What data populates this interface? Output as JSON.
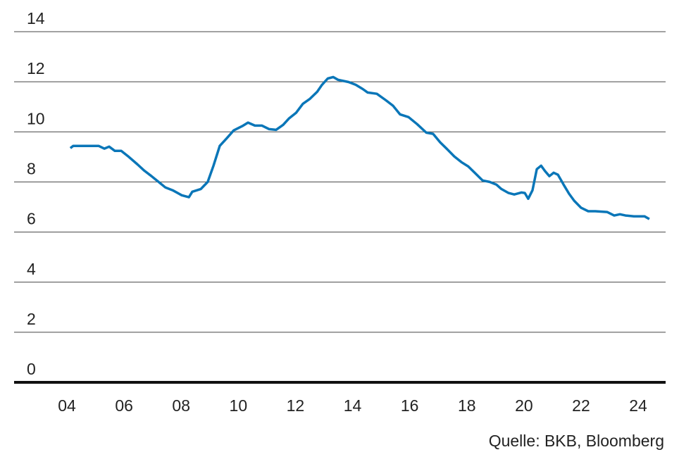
{
  "chart_data": {
    "type": "line",
    "source": "Quelle: BKB, Bloomberg",
    "series": [
      {
        "name": null,
        "color": "#0a76b8",
        "x": [
          2004.12,
          2004.22,
          2005.11,
          2005.31,
          2005.48,
          2005.68,
          2005.9,
          2006.17,
          2006.47,
          2006.71,
          2006.96,
          2007.21,
          2007.45,
          2007.7,
          2008.02,
          2008.27,
          2008.39,
          2008.69,
          2008.93,
          2009.13,
          2009.35,
          2009.6,
          2009.84,
          2010.17,
          2010.34,
          2010.58,
          2010.83,
          2011.08,
          2011.32,
          2011.57,
          2011.77,
          2012.02,
          2012.26,
          2012.51,
          2012.76,
          2012.93,
          2013.13,
          2013.32,
          2013.49,
          2013.86,
          2014.11,
          2014.36,
          2014.53,
          2014.85,
          2015.17,
          2015.42,
          2015.66,
          2015.96,
          2016.26,
          2016.58,
          2016.82,
          2017.07,
          2017.32,
          2017.56,
          2017.81,
          2018.05,
          2018.3,
          2018.55,
          2018.8,
          2019.04,
          2019.21,
          2019.46,
          2019.66,
          2019.91,
          2020.03,
          2020.15,
          2020.3,
          2020.45,
          2020.6,
          2020.74,
          2020.89,
          2021.04,
          2021.19,
          2021.39,
          2021.58,
          2021.76,
          2022.0,
          2022.25,
          2022.5,
          2022.91,
          2023.16,
          2023.36,
          2023.56,
          2023.85,
          2024.22,
          2024.39
        ],
        "values": [
          9.35,
          9.44,
          9.44,
          9.33,
          9.41,
          9.24,
          9.24,
          9.0,
          8.7,
          8.45,
          8.23,
          8.0,
          7.78,
          7.67,
          7.47,
          7.39,
          7.61,
          7.72,
          8.0,
          8.65,
          9.44,
          9.75,
          10.06,
          10.25,
          10.37,
          10.25,
          10.25,
          10.11,
          10.08,
          10.28,
          10.53,
          10.76,
          11.12,
          11.32,
          11.6,
          11.88,
          12.13,
          12.19,
          12.08,
          11.99,
          11.88,
          11.71,
          11.57,
          11.52,
          11.26,
          11.04,
          10.7,
          10.59,
          10.31,
          9.97,
          9.92,
          9.58,
          9.3,
          9.02,
          8.79,
          8.62,
          8.34,
          8.06,
          8.0,
          7.89,
          7.72,
          7.56,
          7.5,
          7.58,
          7.56,
          7.33,
          7.67,
          8.51,
          8.65,
          8.43,
          8.23,
          8.37,
          8.29,
          7.89,
          7.53,
          7.25,
          6.97,
          6.83,
          6.83,
          6.8,
          6.66,
          6.71,
          6.66,
          6.63,
          6.63,
          6.52
        ]
      }
    ],
    "xlim": [
      2002.15,
      2024.96
    ],
    "xticks": [
      {
        "value": 2004,
        "label": "04"
      },
      {
        "value": 2006,
        "label": "06"
      },
      {
        "value": 2008,
        "label": "08"
      },
      {
        "value": 2010,
        "label": "10"
      },
      {
        "value": 2012,
        "label": "12"
      },
      {
        "value": 2014,
        "label": "14"
      },
      {
        "value": 2016,
        "label": "16"
      },
      {
        "value": 2018,
        "label": "18"
      },
      {
        "value": 2020,
        "label": "20"
      },
      {
        "value": 2022,
        "label": "22"
      },
      {
        "value": 2024,
        "label": "24"
      }
    ],
    "ylim": [
      0,
      14
    ],
    "yticks": [
      0,
      2,
      4,
      6,
      8,
      10,
      12,
      14
    ],
    "grid": true
  }
}
